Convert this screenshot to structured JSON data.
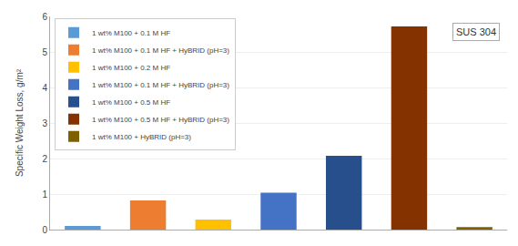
{
  "chart_data": {
    "type": "bar",
    "categories": [
      "1 wt% M100 + 0.1 M HF",
      "1 wt% M100 + 0.1 M HF + HyBRID (pH=3)",
      "1 wt% M100 + 0.2 M HF",
      "1 wt% M100 + 0.1 M HF + HyBRID (pH=3)",
      "1 wt% M100 + 0.5 M HF",
      "1 wt% M100 + 0.5 M HF + HyBRID (pH=3)",
      "1 wt% M100 + HyBRID (pH=3)"
    ],
    "values": [
      0.1,
      0.82,
      0.28,
      1.04,
      2.08,
      5.72,
      0.07
    ],
    "colors": [
      "#5B9BD5",
      "#ED7D31",
      "#FFC000",
      "#4472C4",
      "#264F8C",
      "#833200",
      "#7F6000"
    ],
    "ylabel": "Specific Weight Loss, g/m²",
    "ylim": [
      0,
      6
    ],
    "yticks": [
      0,
      1,
      2,
      3,
      4,
      5,
      6
    ],
    "annotation": "SUS 304",
    "grid": true,
    "legend": "upper left",
    "tick_labels": "y"
  }
}
